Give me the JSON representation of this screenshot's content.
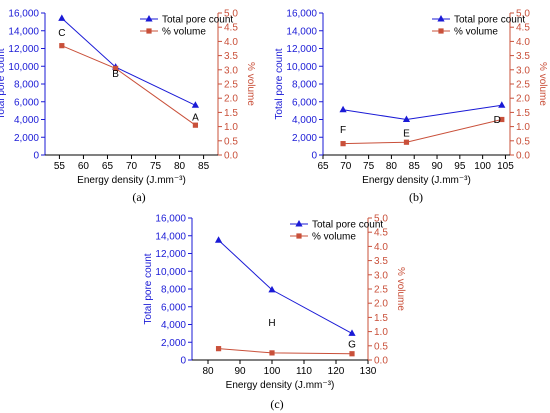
{
  "colors": {
    "pore": "#1a1ad6",
    "volume": "#c9503a",
    "axis": "#000000"
  },
  "chart_data": [
    {
      "type": "line",
      "panel_label": "(a)",
      "xlabel": "Energy density (J.mm⁻³)",
      "ylabel": "Total pore count",
      "y2label": "% volume",
      "xlim": [
        52,
        88
      ],
      "xticks": [
        55,
        60,
        65,
        70,
        75,
        80,
        85
      ],
      "ylim": [
        0,
        16000
      ],
      "yticks": [
        0,
        2000,
        4000,
        6000,
        8000,
        10000,
        12000,
        14000,
        16000
      ],
      "ytick_labels": [
        "0",
        "2,000",
        "4,000",
        "6,000",
        "8,000",
        "10,000",
        "12,000",
        "14,000",
        "16,000"
      ],
      "y2lim": [
        0,
        5.0
      ],
      "y2ticks": [
        0,
        0.5,
        1.0,
        1.5,
        2.0,
        2.5,
        3.0,
        3.5,
        4.0,
        4.5,
        5.0
      ],
      "y2tick_labels": [
        "0.0",
        "0.5",
        "1.0",
        "1.5",
        "2.0",
        "2.5",
        "3.0",
        "3.5",
        "4.0",
        "4.5",
        "5.0"
      ],
      "legend_position": "top-right",
      "series": [
        {
          "name": "Total pore count",
          "axis": "left",
          "marker": "triangle",
          "x": [
            55.5,
            66.7,
            83.3
          ],
          "y": [
            15400,
            9900,
            5600
          ]
        },
        {
          "name": "% volume",
          "axis": "right",
          "marker": "square",
          "x": [
            55.5,
            66.7,
            83.3
          ],
          "y": [
            3.85,
            3.05,
            1.05
          ]
        }
      ],
      "annotations": [
        {
          "text": "C",
          "x": 55.5,
          "y": 13800
        },
        {
          "text": "B",
          "x": 66.7,
          "y": 9200
        },
        {
          "text": "A",
          "x": 83.3,
          "y": 4300
        }
      ]
    },
    {
      "type": "line",
      "panel_label": "(b)",
      "xlabel": "Energy density (J.mm⁻³)",
      "ylabel": "Total pore count",
      "y2label": "% volume",
      "xlim": [
        65,
        106
      ],
      "xticks": [
        65,
        70,
        75,
        80,
        85,
        90,
        95,
        100,
        105
      ],
      "ylim": [
        0,
        16000
      ],
      "yticks": [
        0,
        2000,
        4000,
        6000,
        8000,
        10000,
        12000,
        14000,
        16000
      ],
      "ytick_labels": [
        "0",
        "2,000",
        "4,000",
        "6,000",
        "8,000",
        "10,000",
        "12,000",
        "14,000",
        "16,000"
      ],
      "y2lim": [
        0,
        5.0
      ],
      "y2ticks": [
        0,
        0.5,
        1.0,
        1.5,
        2.0,
        2.5,
        3.0,
        3.5,
        4.0,
        4.5,
        5.0
      ],
      "y2tick_labels": [
        "0.0",
        "0.5",
        "1.0",
        "1.5",
        "2.0",
        "2.5",
        "3.0",
        "3.5",
        "4.0",
        "4.5",
        "5.0"
      ],
      "legend_position": "top-right",
      "series": [
        {
          "name": "Total pore count",
          "axis": "left",
          "marker": "triangle",
          "x": [
            69.4,
            83.3,
            104.2
          ],
          "y": [
            5100,
            4000,
            5600
          ]
        },
        {
          "name": "% volume",
          "axis": "right",
          "marker": "square",
          "x": [
            69.4,
            83.3,
            104.2
          ],
          "y": [
            0.4,
            0.45,
            1.25
          ]
        }
      ],
      "annotations": [
        {
          "text": "F",
          "x": 69.4,
          "y": 2900
        },
        {
          "text": "E",
          "x": 83.3,
          "y": 2500
        },
        {
          "text": "D",
          "x": 103.2,
          "y": 4000
        }
      ]
    },
    {
      "type": "line",
      "panel_label": "(c)",
      "xlabel": "Energy density (J.mm⁻³)",
      "ylabel": "Total pore count",
      "y2label": "% volume",
      "xlim": [
        75,
        130
      ],
      "xticks": [
        80,
        90,
        100,
        110,
        120,
        130
      ],
      "ylim": [
        0,
        16000
      ],
      "yticks": [
        0,
        2000,
        4000,
        6000,
        8000,
        10000,
        12000,
        14000,
        16000
      ],
      "ytick_labels": [
        "0",
        "2,000",
        "4,000",
        "6,000",
        "8,000",
        "10,000",
        "12,000",
        "14,000",
        "16,000"
      ],
      "y2lim": [
        0,
        5.0
      ],
      "y2ticks": [
        0,
        0.5,
        1.0,
        1.5,
        2.0,
        2.5,
        3.0,
        3.5,
        4.0,
        4.5,
        5.0
      ],
      "y2tick_labels": [
        "0.0",
        "0.5",
        "1.0",
        "1.5",
        "2.0",
        "2.5",
        "3.0",
        "3.5",
        "4.0",
        "4.5",
        "5.0"
      ],
      "legend_position": "top-right",
      "series": [
        {
          "name": "Total pore count",
          "axis": "left",
          "marker": "triangle",
          "x": [
            83.3,
            100,
            125
          ],
          "y": [
            13500,
            7900,
            3000
          ]
        },
        {
          "name": "% volume",
          "axis": "right",
          "marker": "square",
          "x": [
            83.3,
            100,
            125
          ],
          "y": [
            0.4,
            0.25,
            0.22
          ]
        }
      ],
      "annotations": [
        {
          "text": "H",
          "x": 100,
          "y": 4200
        },
        {
          "text": "G",
          "x": 125,
          "y": 1800
        }
      ]
    }
  ]
}
